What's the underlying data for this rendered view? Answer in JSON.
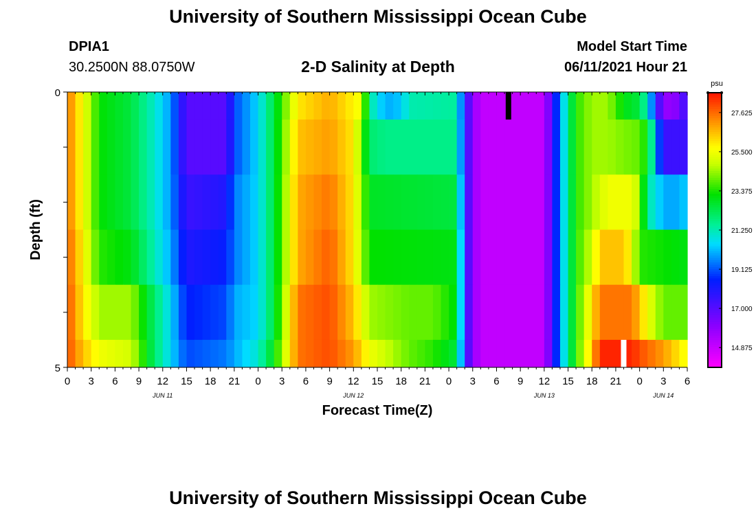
{
  "header": {
    "title": "University of Southern Mississippi Ocean Cube",
    "station": "DPIA1",
    "coords": "30.2500N  88.0750W",
    "plot_title": "2-D Salinity at Depth",
    "model_start_label": "Model Start Time",
    "model_start_value": "06/11/2021 Hour 21"
  },
  "footer": {
    "title": "University of Southern Mississippi Ocean Cube"
  },
  "chart_data": {
    "type": "heatmap",
    "title": "2-D Salinity at Depth",
    "xlabel": "Forecast Time(Z)",
    "ylabel": "Depth (ft)",
    "y_tick_labels": [
      "0",
      "5"
    ],
    "ylim": [
      0,
      5
    ],
    "x_tick_labels": [
      "0",
      "3",
      "6",
      "9",
      "12",
      "15",
      "18",
      "21",
      "0",
      "3",
      "6",
      "9",
      "12",
      "15",
      "18",
      "21",
      "0",
      "3",
      "6",
      "9",
      "12",
      "15",
      "18",
      "21",
      "0",
      "3",
      "6"
    ],
    "date_labels": [
      {
        "label": "JUN 11",
        "hour_index": 12
      },
      {
        "label": "JUN 12",
        "hour_index": 36
      },
      {
        "label": "JUN 13",
        "hour_index": 60
      },
      {
        "label": "JUN 14",
        "hour_index": 75
      }
    ],
    "x_hours": 78,
    "colorbar": {
      "unit": "psu",
      "min": 13.8,
      "max": 28.7,
      "tick_labels": [
        "27.625",
        "25.500",
        "23.375",
        "21.250",
        "19.125",
        "17.000",
        "14.875"
      ],
      "tick_values": [
        27.625,
        25.5,
        23.375,
        21.25,
        19.125,
        17.0,
        14.875
      ]
    },
    "layers": [
      {
        "depth_range": [
          0,
          0.5
        ],
        "keypoints": [
          [
            0,
            27.5
          ],
          [
            2,
            25.5
          ],
          [
            4,
            23.2
          ],
          [
            8,
            22.5
          ],
          [
            11,
            21.0
          ],
          [
            13,
            19.8
          ],
          [
            15,
            17.0
          ],
          [
            20,
            17.0
          ],
          [
            21,
            19.0
          ],
          [
            24,
            20.5
          ],
          [
            26,
            22.5
          ],
          [
            29,
            26.0
          ],
          [
            33,
            26.8
          ],
          [
            37,
            25.5
          ],
          [
            38,
            21.5
          ],
          [
            40,
            20.0
          ],
          [
            42,
            20.3
          ],
          [
            43,
            21.3
          ],
          [
            49,
            21.5
          ],
          [
            50,
            18.0
          ],
          [
            51,
            16.0
          ],
          [
            52,
            15.0
          ],
          [
            60,
            15.0
          ],
          [
            61,
            17.5
          ],
          [
            62,
            19.8
          ],
          [
            64,
            23.5
          ],
          [
            66,
            24.5
          ],
          [
            68,
            24.5
          ],
          [
            70,
            23.0
          ],
          [
            72,
            22.5
          ],
          [
            73,
            21.0
          ],
          [
            75,
            15.8
          ],
          [
            77,
            16.2
          ],
          [
            78,
            18.0
          ]
        ]
      },
      {
        "depth_range": [
          0.5,
          1.5
        ],
        "keypoints": [
          [
            0,
            27.5
          ],
          [
            2,
            25.5
          ],
          [
            4,
            23.2
          ],
          [
            8,
            22.5
          ],
          [
            11,
            21.0
          ],
          [
            13,
            19.8
          ],
          [
            15,
            17.0
          ],
          [
            20,
            17.0
          ],
          [
            21,
            19.0
          ],
          [
            24,
            20.5
          ],
          [
            26,
            22.5
          ],
          [
            29,
            26.5
          ],
          [
            33,
            27.0
          ],
          [
            36,
            26.0
          ],
          [
            38,
            22.0
          ],
          [
            40,
            21.7
          ],
          [
            49,
            21.7
          ],
          [
            50,
            18.0
          ],
          [
            51,
            16.0
          ],
          [
            52,
            15.0
          ],
          [
            60,
            15.0
          ],
          [
            61,
            17.5
          ],
          [
            62,
            19.8
          ],
          [
            64,
            23.5
          ],
          [
            66,
            24.5
          ],
          [
            68,
            24.5
          ],
          [
            70,
            24.2
          ],
          [
            72,
            24.0
          ],
          [
            73,
            23.0
          ],
          [
            75,
            17.5
          ],
          [
            78,
            17.5
          ]
        ]
      },
      {
        "depth_range": [
          1.5,
          2.5
        ],
        "keypoints": [
          [
            0,
            27.5
          ],
          [
            2,
            25.5
          ],
          [
            4,
            23.2
          ],
          [
            8,
            22.5
          ],
          [
            11,
            21.0
          ],
          [
            13,
            19.8
          ],
          [
            15,
            17.5
          ],
          [
            20,
            18.0
          ],
          [
            21,
            19.5
          ],
          [
            24,
            20.5
          ],
          [
            26,
            22.5
          ],
          [
            29,
            26.8
          ],
          [
            33,
            27.5
          ],
          [
            36,
            26.0
          ],
          [
            38,
            22.8
          ],
          [
            49,
            22.5
          ],
          [
            50,
            18.0
          ],
          [
            51,
            16.0
          ],
          [
            52,
            15.0
          ],
          [
            60,
            15.0
          ],
          [
            61,
            17.5
          ],
          [
            62,
            19.8
          ],
          [
            64,
            23.5
          ],
          [
            66,
            24.5
          ],
          [
            68,
            25.5
          ],
          [
            71,
            25.5
          ],
          [
            72,
            24.5
          ],
          [
            73,
            21.5
          ],
          [
            75,
            20.0
          ],
          [
            77,
            20.0
          ],
          [
            78,
            20.5
          ]
        ]
      },
      {
        "depth_range": [
          2.5,
          3.5
        ],
        "keypoints": [
          [
            0,
            27.8
          ],
          [
            2,
            25.8
          ],
          [
            4,
            23.5
          ],
          [
            8,
            23.0
          ],
          [
            11,
            21.2
          ],
          [
            13,
            20.0
          ],
          [
            15,
            18.0
          ],
          [
            20,
            18.5
          ],
          [
            21,
            19.5
          ],
          [
            24,
            20.5
          ],
          [
            26,
            22.5
          ],
          [
            29,
            26.8
          ],
          [
            33,
            27.8
          ],
          [
            36,
            26.0
          ],
          [
            38,
            23.2
          ],
          [
            49,
            23.0
          ],
          [
            50,
            18.0
          ],
          [
            51,
            16.0
          ],
          [
            52,
            15.0
          ],
          [
            60,
            15.0
          ],
          [
            61,
            17.5
          ],
          [
            62,
            19.8
          ],
          [
            64,
            23.5
          ],
          [
            66,
            25.0
          ],
          [
            67,
            26.5
          ],
          [
            70,
            26.5
          ],
          [
            71,
            25.5
          ],
          [
            72,
            23.5
          ],
          [
            78,
            23.0
          ]
        ]
      },
      {
        "depth_range": [
          3.5,
          4.5
        ],
        "keypoints": [
          [
            0,
            28.0
          ],
          [
            2,
            26.0
          ],
          [
            4,
            24.5
          ],
          [
            8,
            24.5
          ],
          [
            11,
            22.0
          ],
          [
            13,
            20.5
          ],
          [
            15,
            18.5
          ],
          [
            20,
            19.0
          ],
          [
            21,
            20.0
          ],
          [
            24,
            20.5
          ],
          [
            26,
            22.5
          ],
          [
            29,
            27.5
          ],
          [
            33,
            28.0
          ],
          [
            36,
            26.5
          ],
          [
            38,
            24.5
          ],
          [
            43,
            24.0
          ],
          [
            46,
            24.0
          ],
          [
            49,
            23.0
          ],
          [
            50,
            18.0
          ],
          [
            51,
            16.0
          ],
          [
            52,
            15.0
          ],
          [
            60,
            15.0
          ],
          [
            61,
            17.5
          ],
          [
            62,
            19.8
          ],
          [
            64,
            23.5
          ],
          [
            66,
            26.0
          ],
          [
            67,
            27.5
          ],
          [
            71,
            27.5
          ],
          [
            72,
            26.5
          ],
          [
            73,
            25.5
          ],
          [
            75,
            24.0
          ],
          [
            78,
            24.0
          ]
        ]
      },
      {
        "depth_range": [
          4.5,
          5
        ],
        "keypoints": [
          [
            0,
            28.0
          ],
          [
            2,
            26.5
          ],
          [
            4,
            25.5
          ],
          [
            8,
            25.0
          ],
          [
            11,
            22.0
          ],
          [
            13,
            20.5
          ],
          [
            15,
            19.0
          ],
          [
            20,
            19.5
          ],
          [
            21,
            20.0
          ],
          [
            24,
            21.0
          ],
          [
            26,
            23.0
          ],
          [
            29,
            27.5
          ],
          [
            33,
            28.0
          ],
          [
            36,
            27.0
          ],
          [
            38,
            25.5
          ],
          [
            43,
            24.0
          ],
          [
            46,
            23.5
          ],
          [
            49,
            22.5
          ],
          [
            50,
            18.0
          ],
          [
            51,
            16.0
          ],
          [
            52,
            15.0
          ],
          [
            60,
            15.0
          ],
          [
            61,
            17.5
          ],
          [
            62,
            19.8
          ],
          [
            64,
            23.5
          ],
          [
            66,
            26.5
          ],
          [
            67,
            28.5
          ],
          [
            71,
            28.5
          ],
          [
            72,
            28.0
          ],
          [
            75,
            27.0
          ],
          [
            78,
            25.5
          ]
        ]
      }
    ],
    "markers": [
      {
        "color": "#000000",
        "hour": 55.5,
        "depth_range": [
          0,
          0.5
        ]
      },
      {
        "color": "#ffffff",
        "hour": 70,
        "depth_range": [
          4.5,
          5
        ]
      }
    ]
  }
}
